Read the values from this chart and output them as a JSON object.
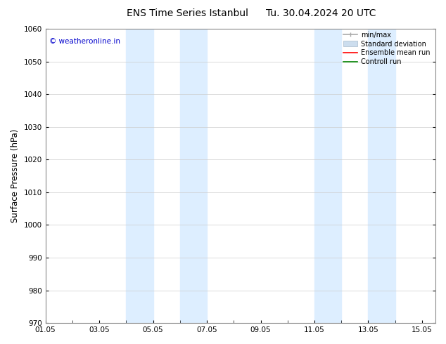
{
  "title": "ENS Time Series Istanbul",
  "title2": "Tu. 30.04.2024 20 UTC",
  "ylabel": "Surface Pressure (hPa)",
  "ylim": [
    970,
    1060
  ],
  "yticks": [
    970,
    980,
    990,
    1000,
    1010,
    1020,
    1030,
    1040,
    1050,
    1060
  ],
  "xlim_start": 0,
  "xlim_end": 14.5,
  "xtick_labels": [
    "01.05",
    "03.05",
    "05.05",
    "07.05",
    "09.05",
    "11.05",
    "13.05",
    "15.05"
  ],
  "xtick_positions": [
    0,
    2,
    4,
    6,
    8,
    10,
    12,
    14
  ],
  "shaded_bands": [
    {
      "x_start": 3.0,
      "x_end": 4.0
    },
    {
      "x_start": 5.0,
      "x_end": 6.0
    },
    {
      "x_start": 10.0,
      "x_end": 11.0
    },
    {
      "x_start": 12.0,
      "x_end": 13.0
    }
  ],
  "shaded_color": "#ddeeff",
  "background_color": "#ffffff",
  "watermark_text": "© weatheronline.in",
  "watermark_color": "#0000cc",
  "legend_items": [
    {
      "label": "min/max",
      "color": "#aaaaaa",
      "lw": 1.2,
      "ls": "-"
    },
    {
      "label": "Standard deviation",
      "color": "#ccddee",
      "lw": 6,
      "ls": "-"
    },
    {
      "label": "Ensemble mean run",
      "color": "#ff0000",
      "lw": 1.2,
      "ls": "-"
    },
    {
      "label": "Controll run",
      "color": "#008000",
      "lw": 1.2,
      "ls": "-"
    }
  ],
  "grid_color": "#cccccc",
  "tick_fontsize": 7.5,
  "label_fontsize": 8.5,
  "title_fontsize": 10
}
